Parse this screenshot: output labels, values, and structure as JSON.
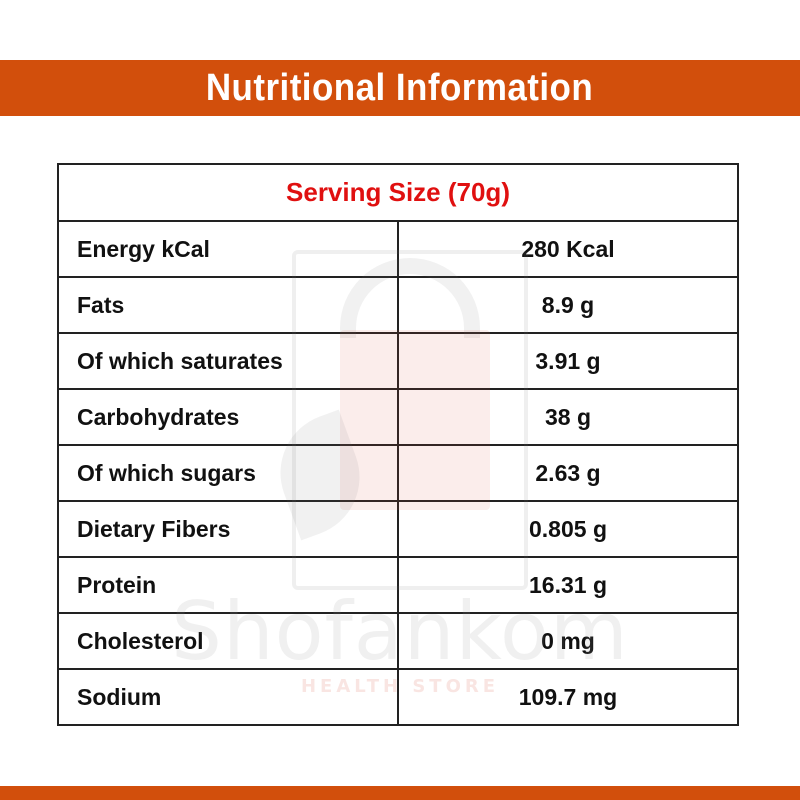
{
  "colors": {
    "band": "#d24f0c",
    "serving": "#e01010",
    "text": "#111111",
    "border": "#222222"
  },
  "header": {
    "title": "Nutritional Information"
  },
  "table": {
    "serving": "Serving Size (70g)",
    "rows": [
      {
        "label": "Energy kCal",
        "value": "280 Kcal"
      },
      {
        "label": "Fats",
        "value": "8.9 g"
      },
      {
        "label": "Of which saturates",
        "value": "3.91 g"
      },
      {
        "label": "Carbohydrates",
        "value": "38 g"
      },
      {
        "label": "Of which sugars",
        "value": "2.63 g"
      },
      {
        "label": "Dietary Fibers",
        "value": "0.805 g"
      },
      {
        "label": "Protein",
        "value": "16.31 g"
      },
      {
        "label": "Cholesterol",
        "value": "0 mg"
      },
      {
        "label": "Sodium",
        "value": "109.7 mg"
      }
    ]
  },
  "watermark": {
    "brand": "Shofankom",
    "tagline": "HEALTH STORE"
  }
}
